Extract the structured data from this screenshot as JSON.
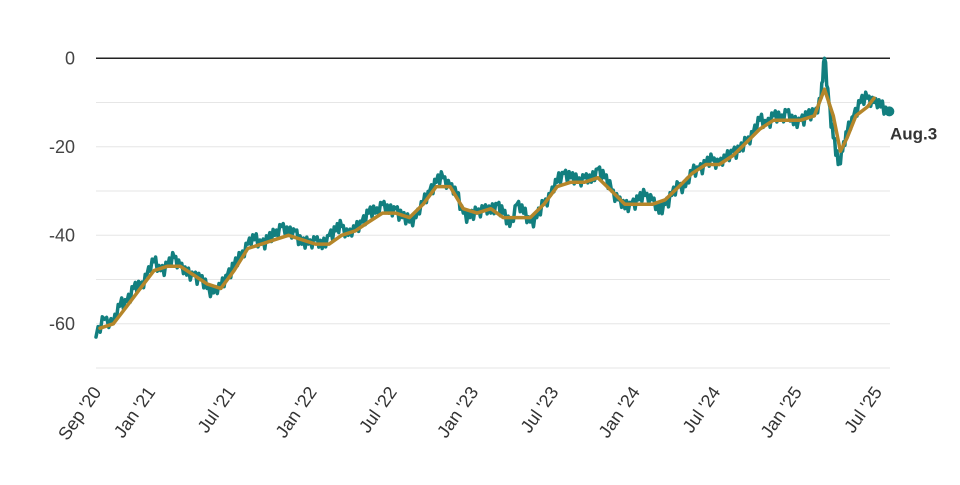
{
  "chart_data": {
    "type": "line",
    "title": "",
    "xlabel": "",
    "ylabel": "",
    "ylim": [
      -70,
      10
    ],
    "xlim": [
      "2020-09-01",
      "2025-07-31"
    ],
    "grid": true,
    "legend": "none",
    "y_ticks": [
      {
        "value": 0,
        "label": "0"
      },
      {
        "value": -20,
        "label": "-20"
      },
      {
        "value": -40,
        "label": "-40"
      },
      {
        "value": -60,
        "label": "-60"
      }
    ],
    "y_gridlines": [
      0,
      -10,
      -20,
      -30,
      -40,
      -50,
      -60,
      -70
    ],
    "x_ticks": [
      {
        "date": "2020-09-01",
        "label": "Sep '20"
      },
      {
        "date": "2021-01-01",
        "label": "Jan '21"
      },
      {
        "date": "2021-07-01",
        "label": "Jul '21"
      },
      {
        "date": "2022-01-01",
        "label": "Jan '22"
      },
      {
        "date": "2022-07-01",
        "label": "Jul '22"
      },
      {
        "date": "2023-01-01",
        "label": "Jan '23"
      },
      {
        "date": "2023-07-01",
        "label": "Jul '23"
      },
      {
        "date": "2024-01-01",
        "label": "Jan '24"
      },
      {
        "date": "2024-07-01",
        "label": "Jul '24"
      },
      {
        "date": "2025-01-01",
        "label": "Jan '25"
      },
      {
        "date": "2025-07-01",
        "label": "Jul '25"
      }
    ],
    "end_label": "Aug.3",
    "colors": {
      "raw": "#127f7f",
      "smoothed": "#b5862a",
      "zero_line": "#222222",
      "grid": "#e6e6e6"
    },
    "series": [
      {
        "style": "raw",
        "points": [
          [
            "2020-09-01",
            -63
          ],
          [
            "2020-09-20",
            -59
          ],
          [
            "2020-10-10",
            -60
          ],
          [
            "2020-10-25",
            -56
          ],
          [
            "2020-11-10",
            -55
          ],
          [
            "2020-11-25",
            -52
          ],
          [
            "2020-12-10",
            -52
          ],
          [
            "2020-12-25",
            -49
          ],
          [
            "2021-01-10",
            -46
          ],
          [
            "2021-01-25",
            -48
          ],
          [
            "2021-02-10",
            -47
          ],
          [
            "2021-02-25",
            -45
          ],
          [
            "2021-03-10",
            -47
          ],
          [
            "2021-03-25",
            -49
          ],
          [
            "2021-04-10",
            -49
          ],
          [
            "2021-04-25",
            -50
          ],
          [
            "2021-05-10",
            -52
          ],
          [
            "2021-05-25",
            -53
          ],
          [
            "2021-06-10",
            -52
          ],
          [
            "2021-06-25",
            -49
          ],
          [
            "2021-07-10",
            -47
          ],
          [
            "2021-07-25",
            -45
          ],
          [
            "2021-08-10",
            -42
          ],
          [
            "2021-08-25",
            -41
          ],
          [
            "2021-09-10",
            -42
          ],
          [
            "2021-09-25",
            -41
          ],
          [
            "2021-10-10",
            -40
          ],
          [
            "2021-10-25",
            -38
          ],
          [
            "2021-11-10",
            -40
          ],
          [
            "2021-11-25",
            -39
          ],
          [
            "2021-12-10",
            -42
          ],
          [
            "2021-12-25",
            -42
          ],
          [
            "2022-01-10",
            -41
          ],
          [
            "2022-01-25",
            -43
          ],
          [
            "2022-02-10",
            -40
          ],
          [
            "2022-02-25",
            -39
          ],
          [
            "2022-03-10",
            -38
          ],
          [
            "2022-03-25",
            -40
          ],
          [
            "2022-04-10",
            -39
          ],
          [
            "2022-04-25",
            -37
          ],
          [
            "2022-05-10",
            -35
          ],
          [
            "2022-05-25",
            -35
          ],
          [
            "2022-06-10",
            -33
          ],
          [
            "2022-06-25",
            -35
          ],
          [
            "2022-07-10",
            -34
          ],
          [
            "2022-07-25",
            -36
          ],
          [
            "2022-08-10",
            -37
          ],
          [
            "2022-08-25",
            -36
          ],
          [
            "2022-09-10",
            -33
          ],
          [
            "2022-09-25",
            -30
          ],
          [
            "2022-10-10",
            -28
          ],
          [
            "2022-10-25",
            -27
          ],
          [
            "2022-11-10",
            -29
          ],
          [
            "2022-11-25",
            -31
          ],
          [
            "2022-12-10",
            -35
          ],
          [
            "2022-12-25",
            -36
          ],
          [
            "2023-01-10",
            -35
          ],
          [
            "2023-01-25",
            -34
          ],
          [
            "2023-02-10",
            -35
          ],
          [
            "2023-02-25",
            -33
          ],
          [
            "2023-03-10",
            -35
          ],
          [
            "2023-03-25",
            -38
          ],
          [
            "2023-04-10",
            -33
          ],
          [
            "2023-04-25",
            -35
          ],
          [
            "2023-05-10",
            -37
          ],
          [
            "2023-05-25",
            -36
          ],
          [
            "2023-06-10",
            -33
          ],
          [
            "2023-06-25",
            -31
          ],
          [
            "2023-07-10",
            -28
          ],
          [
            "2023-07-25",
            -26
          ],
          [
            "2023-08-10",
            -27
          ],
          [
            "2023-08-25",
            -28
          ],
          [
            "2023-09-10",
            -27
          ],
          [
            "2023-09-25",
            -28
          ],
          [
            "2023-10-10",
            -25
          ],
          [
            "2023-10-25",
            -27
          ],
          [
            "2023-11-10",
            -30
          ],
          [
            "2023-11-25",
            -32
          ],
          [
            "2023-12-10",
            -34
          ],
          [
            "2023-12-25",
            -33
          ],
          [
            "2024-01-10",
            -32
          ],
          [
            "2024-01-25",
            -31
          ],
          [
            "2024-02-10",
            -32
          ],
          [
            "2024-02-25",
            -35
          ],
          [
            "2024-03-10",
            -33
          ],
          [
            "2024-03-25",
            -31
          ],
          [
            "2024-04-10",
            -29
          ],
          [
            "2024-04-25",
            -29
          ],
          [
            "2024-05-10",
            -26
          ],
          [
            "2024-05-25",
            -25
          ],
          [
            "2024-06-10",
            -24
          ],
          [
            "2024-06-25",
            -23
          ],
          [
            "2024-07-10",
            -24
          ],
          [
            "2024-07-25",
            -23
          ],
          [
            "2024-08-10",
            -21
          ],
          [
            "2024-08-25",
            -21
          ],
          [
            "2024-09-10",
            -19
          ],
          [
            "2024-09-25",
            -17
          ],
          [
            "2024-10-10",
            -14
          ],
          [
            "2024-10-25",
            -15
          ],
          [
            "2024-11-10",
            -13
          ],
          [
            "2024-11-25",
            -14
          ],
          [
            "2024-12-10",
            -12
          ],
          [
            "2024-12-25",
            -15
          ],
          [
            "2025-01-10",
            -14
          ],
          [
            "2025-01-25",
            -13
          ],
          [
            "2025-02-10",
            -13
          ],
          [
            "2025-02-25",
            -9
          ],
          [
            "2025-03-05",
            0
          ],
          [
            "2025-03-15",
            -10
          ],
          [
            "2025-03-25",
            -18
          ],
          [
            "2025-04-05",
            -24
          ],
          [
            "2025-04-15",
            -21
          ],
          [
            "2025-04-25",
            -17
          ],
          [
            "2025-05-10",
            -13
          ],
          [
            "2025-05-25",
            -10
          ],
          [
            "2025-06-10",
            -9
          ],
          [
            "2025-06-25",
            -10
          ],
          [
            "2025-07-10",
            -11
          ],
          [
            "2025-07-25",
            -12
          ]
        ]
      },
      {
        "style": "smoothed",
        "points": [
          [
            "2020-09-10",
            -61
          ],
          [
            "2020-10-10",
            -60
          ],
          [
            "2020-11-10",
            -56
          ],
          [
            "2020-12-10",
            -52
          ],
          [
            "2021-01-10",
            -48
          ],
          [
            "2021-02-10",
            -47
          ],
          [
            "2021-03-10",
            -47
          ],
          [
            "2021-04-10",
            -49
          ],
          [
            "2021-05-10",
            -51
          ],
          [
            "2021-06-10",
            -52
          ],
          [
            "2021-07-10",
            -48
          ],
          [
            "2021-08-10",
            -43
          ],
          [
            "2021-09-10",
            -42
          ],
          [
            "2021-10-10",
            -41
          ],
          [
            "2021-11-10",
            -40
          ],
          [
            "2021-12-10",
            -41
          ],
          [
            "2022-01-10",
            -42
          ],
          [
            "2022-02-10",
            -42
          ],
          [
            "2022-03-10",
            -40
          ],
          [
            "2022-04-10",
            -39
          ],
          [
            "2022-05-10",
            -37
          ],
          [
            "2022-06-10",
            -35
          ],
          [
            "2022-07-10",
            -35
          ],
          [
            "2022-08-10",
            -36
          ],
          [
            "2022-09-10",
            -33
          ],
          [
            "2022-10-10",
            -29
          ],
          [
            "2022-11-10",
            -29
          ],
          [
            "2022-12-10",
            -34
          ],
          [
            "2023-01-10",
            -35
          ],
          [
            "2023-02-10",
            -34
          ],
          [
            "2023-03-10",
            -36
          ],
          [
            "2023-04-10",
            -36
          ],
          [
            "2023-05-10",
            -36
          ],
          [
            "2023-06-10",
            -33
          ],
          [
            "2023-07-10",
            -29
          ],
          [
            "2023-08-10",
            -28
          ],
          [
            "2023-09-10",
            -28
          ],
          [
            "2023-10-10",
            -27
          ],
          [
            "2023-11-10",
            -30
          ],
          [
            "2023-12-10",
            -33
          ],
          [
            "2024-01-10",
            -33
          ],
          [
            "2024-02-10",
            -33
          ],
          [
            "2024-03-10",
            -32
          ],
          [
            "2024-04-10",
            -29
          ],
          [
            "2024-05-10",
            -26
          ],
          [
            "2024-06-10",
            -24
          ],
          [
            "2024-07-10",
            -24
          ],
          [
            "2024-08-10",
            -22
          ],
          [
            "2024-09-10",
            -19
          ],
          [
            "2024-10-10",
            -16
          ],
          [
            "2024-11-10",
            -14
          ],
          [
            "2024-12-10",
            -14
          ],
          [
            "2025-01-10",
            -14
          ],
          [
            "2025-02-10",
            -13
          ],
          [
            "2025-03-05",
            -7
          ],
          [
            "2025-03-25",
            -13
          ],
          [
            "2025-04-10",
            -21
          ],
          [
            "2025-04-25",
            -18
          ],
          [
            "2025-05-15",
            -13
          ],
          [
            "2025-06-10",
            -11
          ],
          [
            "2025-06-25",
            -9
          ]
        ]
      }
    ]
  }
}
